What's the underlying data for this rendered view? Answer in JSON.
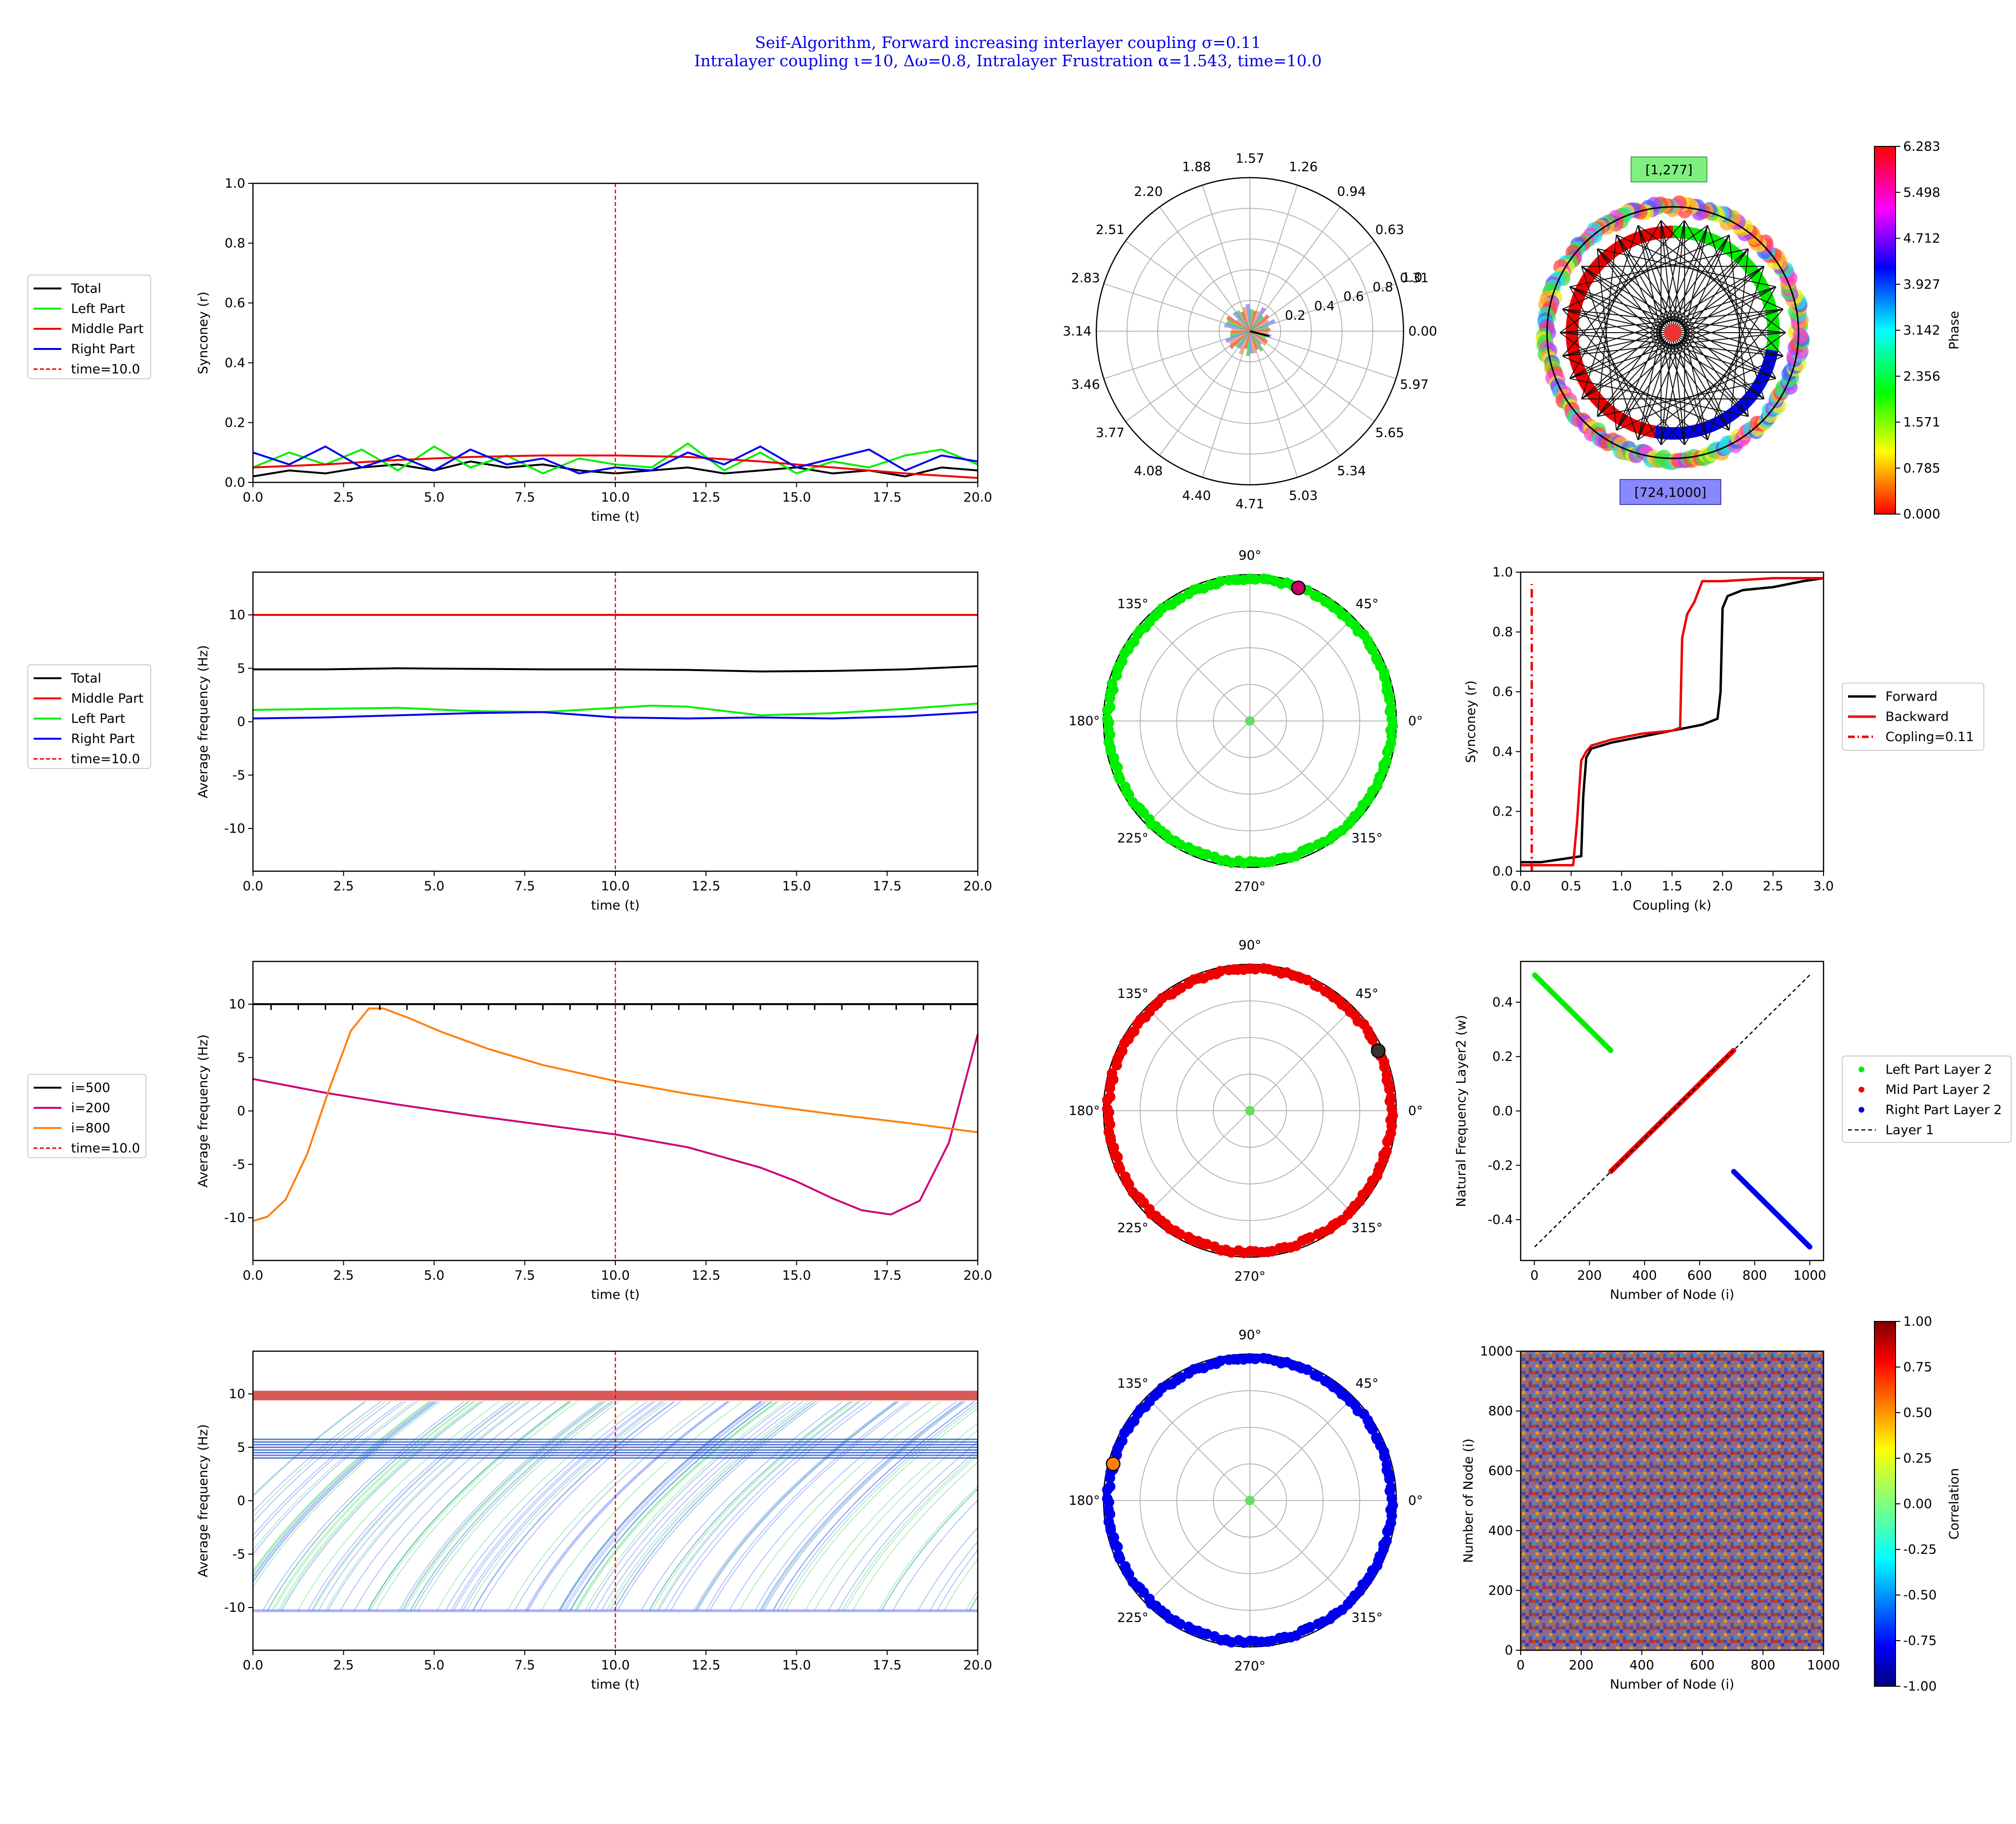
{
  "title_lines": [
    "Seif-Algorithm, Forward increasing interlayer coupling σ=0.11",
    "Intralayer coupling ι=10, Δω=0.8, Intralayer Frustration α=1.543, time=10.0"
  ],
  "colors": {
    "title": "#0000ee",
    "total": "#000000",
    "left": "#00ee00",
    "middle": "#ee0000",
    "right": "#0000ee",
    "orange": "#ff7f0e",
    "magenta": "#cc0077",
    "vline": "#ee0000"
  },
  "chart_data": [
    {
      "id": "sync-time",
      "type": "line",
      "xlabel": "time (t)",
      "ylabel": "Synconey (r)",
      "xlim": [
        0,
        20
      ],
      "ylim": [
        0,
        1
      ],
      "xticks": [
        "0.0",
        "2.5",
        "5.0",
        "7.5",
        "10.0",
        "12.5",
        "15.0",
        "17.5",
        "20.0"
      ],
      "yticks": [
        "0.0",
        "0.2",
        "0.4",
        "0.6",
        "0.8",
        "1.0"
      ],
      "vline": 10,
      "legend": [
        "Total",
        "Left Part",
        "Middle Part",
        "Right Part",
        "time=10.0"
      ],
      "series": [
        {
          "name": "Total",
          "color": "#000000",
          "x": [
            0,
            1,
            2,
            3,
            4,
            5,
            6,
            7,
            8,
            9,
            10,
            11,
            12,
            13,
            14,
            15,
            16,
            17,
            18,
            19,
            20
          ],
          "y": [
            0.02,
            0.04,
            0.03,
            0.05,
            0.06,
            0.04,
            0.07,
            0.05,
            0.06,
            0.04,
            0.03,
            0.04,
            0.05,
            0.03,
            0.04,
            0.05,
            0.03,
            0.04,
            0.02,
            0.05,
            0.04
          ]
        },
        {
          "name": "Left Part",
          "color": "#00ee00",
          "x": [
            0,
            1,
            2,
            3,
            4,
            5,
            6,
            7,
            8,
            9,
            10,
            11,
            12,
            13,
            14,
            15,
            16,
            17,
            18,
            19,
            20
          ],
          "y": [
            0.05,
            0.1,
            0.06,
            0.11,
            0.04,
            0.12,
            0.05,
            0.09,
            0.03,
            0.08,
            0.06,
            0.05,
            0.13,
            0.04,
            0.1,
            0.03,
            0.07,
            0.05,
            0.09,
            0.11,
            0.06
          ]
        },
        {
          "name": "Middle Part",
          "color": "#ee0000",
          "x": [
            0,
            2,
            4,
            6,
            8,
            10,
            12,
            14,
            16,
            18,
            20
          ],
          "y": [
            0.05,
            0.06,
            0.075,
            0.085,
            0.09,
            0.09,
            0.085,
            0.07,
            0.05,
            0.03,
            0.015
          ]
        },
        {
          "name": "Right Part",
          "color": "#0000ee",
          "x": [
            0,
            1,
            2,
            3,
            4,
            5,
            6,
            7,
            8,
            9,
            10,
            11,
            12,
            13,
            14,
            15,
            16,
            17,
            18,
            19,
            20
          ],
          "y": [
            0.1,
            0.06,
            0.12,
            0.05,
            0.09,
            0.04,
            0.11,
            0.06,
            0.08,
            0.03,
            0.05,
            0.04,
            0.1,
            0.06,
            0.12,
            0.05,
            0.08,
            0.11,
            0.04,
            0.09,
            0.07
          ]
        }
      ]
    },
    {
      "id": "freq-parts",
      "type": "line",
      "xlabel": "time (t)",
      "ylabel": "Average frequency (Hz)",
      "xlim": [
        0,
        20
      ],
      "ylim": [
        -14,
        14
      ],
      "xticks": [
        "0.0",
        "2.5",
        "5.0",
        "7.5",
        "10.0",
        "12.5",
        "15.0",
        "17.5",
        "20.0"
      ],
      "yticks": [
        "-10",
        "-5",
        "0",
        "5",
        "10"
      ],
      "vline": 10,
      "legend": [
        "Total",
        "Middle Part",
        "Left Part",
        "Right Part",
        "time=10.0"
      ],
      "series": [
        {
          "name": "Total",
          "color": "#000000",
          "x": [
            0,
            2,
            4,
            6,
            8,
            10,
            12,
            14,
            16,
            18,
            20
          ],
          "y": [
            4.9,
            4.9,
            5.0,
            4.95,
            4.9,
            4.9,
            4.85,
            4.7,
            4.75,
            4.9,
            5.2
          ]
        },
        {
          "name": "Middle Part",
          "color": "#ee0000",
          "x": [
            0,
            20
          ],
          "y": [
            10,
            10
          ]
        },
        {
          "name": "Left Part",
          "color": "#00ee00",
          "x": [
            0,
            2,
            4,
            6,
            8,
            10,
            11,
            12,
            14,
            16,
            18,
            20
          ],
          "y": [
            1.1,
            1.2,
            1.3,
            1.0,
            0.9,
            1.3,
            1.5,
            1.4,
            0.6,
            0.8,
            1.2,
            1.7
          ]
        },
        {
          "name": "Right Part",
          "color": "#0000ee",
          "x": [
            0,
            2,
            4,
            6,
            8,
            10,
            12,
            14,
            16,
            18,
            20
          ],
          "y": [
            0.3,
            0.4,
            0.6,
            0.8,
            0.9,
            0.4,
            0.3,
            0.4,
            0.3,
            0.5,
            0.9
          ]
        }
      ]
    },
    {
      "id": "freq-nodes",
      "type": "line",
      "xlabel": "time (t)",
      "ylabel": "Average frequency (Hz)",
      "xlim": [
        0,
        20
      ],
      "ylim": [
        -14,
        14
      ],
      "xticks": [
        "0.0",
        "2.5",
        "5.0",
        "7.5",
        "10.0",
        "12.5",
        "15.0",
        "17.5",
        "20.0"
      ],
      "yticks": [
        "-10",
        "-5",
        "0",
        "5",
        "10"
      ],
      "vline": 10,
      "legend": [
        "i=500",
        "i=200",
        "i=800",
        "time=10.0"
      ],
      "series": [
        {
          "name": "i=500",
          "color": "#000000",
          "x": [
            0,
            20
          ],
          "y": [
            10,
            10
          ]
        },
        {
          "name": "i=200",
          "color": "#cc0077",
          "x": [
            0,
            2,
            4,
            6,
            8,
            10,
            12,
            14,
            15,
            16,
            16.8,
            17.6,
            18.4,
            19.2,
            20
          ],
          "y": [
            3.0,
            1.7,
            0.6,
            -0.4,
            -1.3,
            -2.2,
            -3.4,
            -5.3,
            -6.6,
            -8.2,
            -9.3,
            -9.7,
            -8.4,
            -3.0,
            7.2
          ]
        },
        {
          "name": "i=800",
          "color": "#ff7f0e",
          "x": [
            0,
            0.4,
            0.9,
            1.5,
            2.1,
            2.7,
            3.2,
            3.6,
            4.3,
            5.2,
            6.5,
            8,
            10,
            12,
            14,
            16,
            18,
            20
          ],
          "y": [
            -10.3,
            -9.9,
            -8.3,
            -4.0,
            2.0,
            7.5,
            9.6,
            9.6,
            8.7,
            7.4,
            5.8,
            4.3,
            2.8,
            1.6,
            0.6,
            -0.3,
            -1.1,
            -2.0
          ]
        }
      ]
    },
    {
      "id": "freq-all",
      "type": "line",
      "xlabel": "time (t)",
      "ylabel": "Average frequency (Hz)",
      "xlim": [
        0,
        20
      ],
      "ylim": [
        -14,
        14
      ],
      "xticks": [
        "0.0",
        "2.5",
        "5.0",
        "7.5",
        "10.0",
        "12.5",
        "15.0",
        "17.5",
        "20.0"
      ],
      "yticks": [
        "-10",
        "-5",
        "0",
        "5",
        "10"
      ],
      "vline": 10,
      "bands": [
        {
          "color": "#ee0000",
          "from": 9.4,
          "to": 10.3
        },
        {
          "color": "#0000cc",
          "from": 4.0,
          "to": 5.9
        }
      ],
      "trace_range": [
        -10.3,
        9.3
      ]
    },
    {
      "id": "polar-hist",
      "type": "bar",
      "angle_labels": [
        "0.00",
        "0.31",
        "0.63",
        "0.94",
        "1.26",
        "1.57",
        "1.88",
        "2.20",
        "2.51",
        "2.83",
        "3.14",
        "3.46",
        "3.77",
        "4.08",
        "4.40",
        "4.71",
        "5.03",
        "5.34",
        "5.65",
        "5.97"
      ],
      "radial_ticks": [
        "0.2",
        "0.4",
        "0.6",
        "0.8",
        "1.0"
      ],
      "rlim": [
        0,
        1.0
      ]
    },
    {
      "id": "network",
      "type": "scatter",
      "labels": [
        "[1,277]",
        "[724,1000]"
      ],
      "colorbar": {
        "label": "Phase",
        "ticks": [
          "0.000",
          "0.785",
          "1.571",
          "2.356",
          "3.142",
          "3.927",
          "4.712",
          "5.498",
          "6.283"
        ]
      }
    },
    {
      "id": "polar-left",
      "type": "scatter",
      "angle_labels": [
        "0°",
        "45°",
        "90°",
        "135°",
        "180°",
        "225°",
        "270°",
        "315°"
      ],
      "color": "#00ee00",
      "marker_angle_deg": 70,
      "marker_color": "#cc0066"
    },
    {
      "id": "hysteresis",
      "type": "line",
      "xlabel": "Coupling (k)",
      "ylabel": "Synconey (r)",
      "xlim": [
        0,
        3
      ],
      "ylim": [
        0,
        1
      ],
      "xticks": [
        "0.0",
        "0.5",
        "1.0",
        "1.5",
        "2.0",
        "2.5",
        "3.0"
      ],
      "yticks": [
        "0.0",
        "0.2",
        "0.4",
        "0.6",
        "0.8",
        "1.0"
      ],
      "legend": [
        "Forward",
        "Backward",
        "Copling=0.11"
      ],
      "vline": 0.11,
      "series": [
        {
          "name": "Forward",
          "color": "#000000",
          "x": [
            0,
            0.2,
            0.4,
            0.6,
            0.62,
            0.65,
            0.7,
            0.9,
            1.2,
            1.5,
            1.8,
            1.95,
            1.98,
            2.0,
            2.05,
            2.2,
            2.5,
            2.8,
            3.0
          ],
          "y": [
            0.03,
            0.03,
            0.04,
            0.05,
            0.25,
            0.38,
            0.41,
            0.43,
            0.45,
            0.47,
            0.49,
            0.51,
            0.6,
            0.88,
            0.92,
            0.94,
            0.95,
            0.97,
            0.98
          ]
        },
        {
          "name": "Backward",
          "color": "#ee0000",
          "x": [
            0,
            0.2,
            0.4,
            0.52,
            0.56,
            0.6,
            0.65,
            0.7,
            0.9,
            1.2,
            1.5,
            1.58,
            1.6,
            1.65,
            1.72,
            1.8,
            2.0,
            2.5,
            3.0
          ],
          "y": [
            0.02,
            0.02,
            0.02,
            0.02,
            0.17,
            0.37,
            0.4,
            0.42,
            0.44,
            0.46,
            0.47,
            0.48,
            0.78,
            0.86,
            0.9,
            0.97,
            0.97,
            0.98,
            0.98
          ]
        }
      ]
    },
    {
      "id": "polar-mid",
      "type": "scatter",
      "angle_labels": [
        "0°",
        "45°",
        "90°",
        "135°",
        "180°",
        "225°",
        "270°",
        "315°"
      ],
      "color": "#ee0000",
      "marker_angle_deg": 25,
      "marker_color": "#333333"
    },
    {
      "id": "natural-freq",
      "type": "scatter",
      "xlabel": "Number of Node (i)",
      "ylabel": "Natural Frequency Layer2 (w)",
      "xlim": [
        -50,
        1050
      ],
      "ylim": [
        -0.55,
        0.55
      ],
      "xticks": [
        "0",
        "200",
        "400",
        "600",
        "800",
        "1000"
      ],
      "yticks": [
        "-0.4",
        "-0.2",
        "0.0",
        "0.2",
        "0.4"
      ],
      "legend": [
        "Left Part Layer 2",
        "Mid Part Layer 2",
        "Right Part Layer 2",
        "Layer 1"
      ],
      "series": [
        {
          "name": "Left Part Layer 2",
          "color": "#00ee00",
          "x": [
            1,
            277
          ],
          "y": [
            0.5,
            0.223
          ]
        },
        {
          "name": "Mid Part Layer 2",
          "color": "#ee0000",
          "x": [
            278,
            723
          ],
          "y": [
            -0.222,
            0.222
          ]
        },
        {
          "name": "Right Part Layer 2",
          "color": "#0000ee",
          "x": [
            724,
            1000
          ],
          "y": [
            -0.223,
            -0.5
          ]
        },
        {
          "name": "Layer 1",
          "color": "#000000",
          "x": [
            1,
            1000
          ],
          "y": [
            -0.5,
            0.5
          ]
        }
      ]
    },
    {
      "id": "polar-right",
      "type": "scatter",
      "angle_labels": [
        "0°",
        "45°",
        "90°",
        "135°",
        "180°",
        "225°",
        "270°",
        "315°"
      ],
      "color": "#0000ee",
      "marker_angle_deg": 165,
      "marker_color": "#ff7f0e"
    },
    {
      "id": "correlation",
      "type": "heatmap",
      "xlabel": "Number of Node (i)",
      "ylabel": "Number of Node (i)",
      "xlim": [
        0,
        1000
      ],
      "ylim": [
        0,
        1000
      ],
      "xticks": [
        "0",
        "200",
        "400",
        "600",
        "800",
        "1000"
      ],
      "yticks": [
        "0",
        "200",
        "400",
        "600",
        "800",
        "1000"
      ],
      "colorbar": {
        "label": "Correlation",
        "ticks": [
          "-1.00",
          "-0.75",
          "-0.50",
          "-0.25",
          "0.00",
          "0.25",
          "0.50",
          "0.75",
          "1.00"
        ]
      }
    }
  ]
}
